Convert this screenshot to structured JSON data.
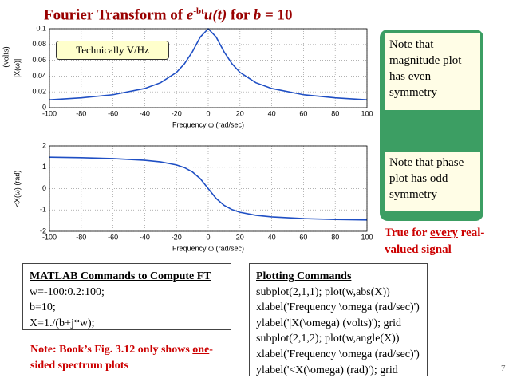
{
  "chart_data": [
    {
      "type": "line",
      "x": [
        -100,
        -80,
        -60,
        -40,
        -30,
        -20,
        -15,
        -10,
        -5,
        0,
        5,
        10,
        15,
        20,
        30,
        40,
        60,
        80,
        100
      ],
      "values": [
        0.00995,
        0.0124,
        0.0164,
        0.0243,
        0.0316,
        0.0447,
        0.0555,
        0.0707,
        0.0894,
        0.1,
        0.0894,
        0.0707,
        0.0555,
        0.0447,
        0.0316,
        0.0243,
        0.0164,
        0.0124,
        0.00995
      ],
      "color": "#1f4fc4",
      "xlim": [
        -100,
        100
      ],
      "xticks": [
        -100,
        -80,
        -60,
        -40,
        -20,
        0,
        20,
        40,
        60,
        80,
        100
      ],
      "ylim": [
        0,
        0.1
      ],
      "yticks": [
        0,
        0.02,
        0.04,
        0.06,
        0.08,
        0.1
      ],
      "grid": true,
      "x_label": "Frequency ω (rad/sec)",
      "y_label": "|X(ω)|",
      "y_unit": "(volts)"
    },
    {
      "type": "line",
      "x": [
        -100,
        -80,
        -60,
        -40,
        -30,
        -20,
        -15,
        -10,
        -5,
        0,
        5,
        10,
        15,
        20,
        30,
        40,
        60,
        80,
        100
      ],
      "values": [
        1.471,
        1.446,
        1.406,
        1.326,
        1.249,
        1.107,
        0.983,
        0.785,
        0.464,
        0,
        -0.464,
        -0.785,
        -0.983,
        -1.107,
        -1.249,
        -1.326,
        -1.406,
        -1.446,
        -1.471
      ],
      "color": "#1f4fc4",
      "xlim": [
        -100,
        100
      ],
      "xticks": [
        -100,
        -80,
        -60,
        -40,
        -20,
        0,
        20,
        40,
        60,
        80,
        100
      ],
      "ylim": [
        -2,
        2
      ],
      "yticks": [
        -2,
        -1,
        0,
        1,
        2
      ],
      "grid": true,
      "x_label": "Frequency ω (rad/sec)",
      "y_label": "<X(ω) (rad)"
    }
  ],
  "slide": {
    "title": {
      "prefix": "Fourier Transform of ",
      "base": "e",
      "exponent": "-bt",
      "func": "u(t)",
      "middle": " for ",
      "var": "b",
      "suffix": " = 10"
    },
    "callout": "Technically V/Hz",
    "note_magnitude": {
      "before": "Note that magnitude plot has ",
      "underlined": "even",
      "after": " symmetry"
    },
    "note_phase": {
      "before": "Note that phase plot has ",
      "underlined": "odd",
      "after": " symmetry"
    },
    "real_signal": {
      "before": "True for ",
      "underlined": "every",
      "after": " real-valued signal"
    },
    "matlab": {
      "heading": "MATLAB Commands to Compute FT",
      "lines": [
        "w=-100:0.2:100;",
        "b=10;",
        "X=1./(b+j*w);"
      ]
    },
    "plotting": {
      "heading": "Plotting Commands",
      "lines": [
        "subplot(2,1,1); plot(w,abs(X))",
        "xlabel('Frequency \\omega (rad/sec)')",
        "ylabel('|X(\\omega) (volts)'); grid",
        "subplot(2,1,2); plot(w,angle(X))",
        "xlabel('Frequency \\omega (rad/sec)')",
        "ylabel('<X(\\omega) (rad)'); grid"
      ]
    },
    "book_note": {
      "before": "Note: Book’s Fig. 3.12 only shows ",
      "underlined": "one",
      "after": "-sided spectrum plots"
    },
    "page": "7"
  }
}
